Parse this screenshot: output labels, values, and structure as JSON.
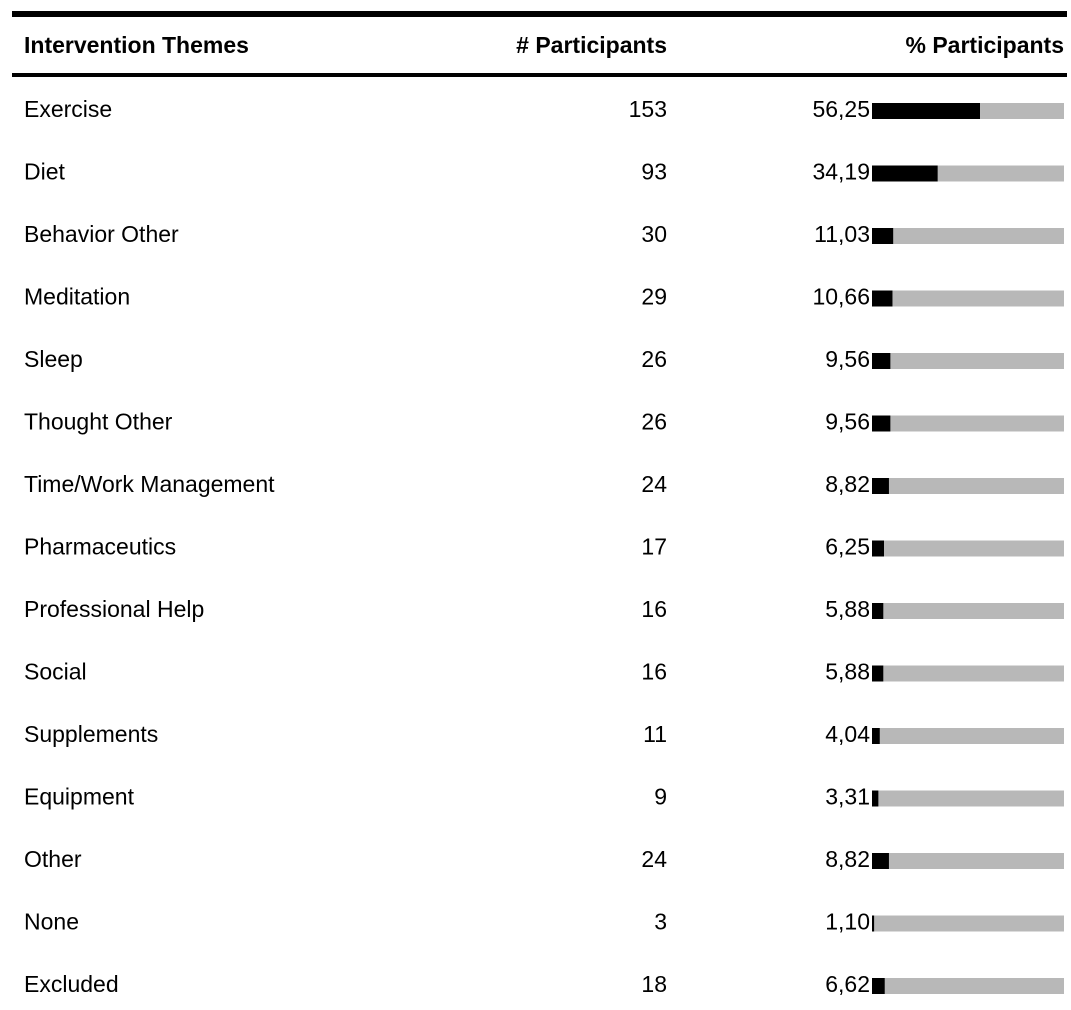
{
  "table": {
    "headers": [
      "Intervention Themes",
      "# Participants",
      "% Participants"
    ],
    "xlim": [
      0,
      100
    ],
    "rows": [
      {
        "theme": "Exercise",
        "participants": 153,
        "percent": 56.25,
        "percent_label": "56,25"
      },
      {
        "theme": "Diet",
        "participants": 93,
        "percent": 34.19,
        "percent_label": "34,19"
      },
      {
        "theme": "Behavior Other",
        "participants": 30,
        "percent": 11.03,
        "percent_label": "11,03"
      },
      {
        "theme": "Meditation",
        "participants": 29,
        "percent": 10.66,
        "percent_label": "10,66"
      },
      {
        "theme": "Sleep",
        "participants": 26,
        "percent": 9.56,
        "percent_label": "9,56"
      },
      {
        "theme": "Thought Other",
        "participants": 26,
        "percent": 9.56,
        "percent_label": "9,56"
      },
      {
        "theme": "Time/Work Management",
        "participants": 24,
        "percent": 8.82,
        "percent_label": "8,82"
      },
      {
        "theme": "Pharmaceutics",
        "participants": 17,
        "percent": 6.25,
        "percent_label": "6,25"
      },
      {
        "theme": "Professional Help",
        "participants": 16,
        "percent": 5.88,
        "percent_label": "5,88"
      },
      {
        "theme": "Social",
        "participants": 16,
        "percent": 5.88,
        "percent_label": "5,88"
      },
      {
        "theme": "Supplements",
        "participants": 11,
        "percent": 4.04,
        "percent_label": "4,04"
      },
      {
        "theme": "Equipment",
        "participants": 9,
        "percent": 3.31,
        "percent_label": "3,31"
      },
      {
        "theme": "Other",
        "participants": 24,
        "percent": 8.82,
        "percent_label": "8,82"
      },
      {
        "theme": "None",
        "participants": 3,
        "percent": 1.1,
        "percent_label": "1,10"
      },
      {
        "theme": "Excluded",
        "participants": 18,
        "percent": 6.62,
        "percent_label": "6,62"
      }
    ]
  }
}
